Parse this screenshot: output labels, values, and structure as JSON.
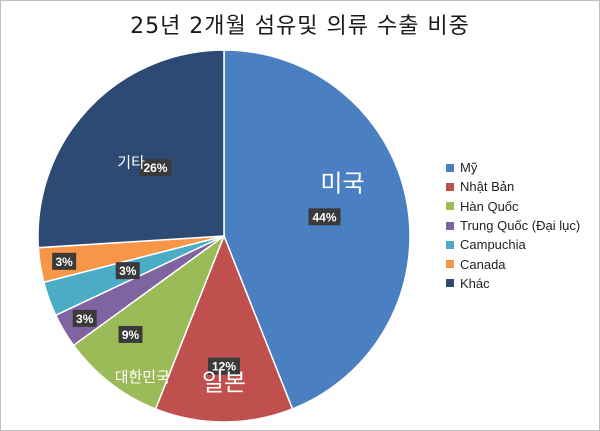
{
  "chart_data": {
    "type": "pie",
    "title": "25년 2개월 섬유및 의류 수출 비중",
    "slices": [
      {
        "name": "Mỹ",
        "value": 44,
        "label": "44%",
        "color": "#4a7fc1",
        "callout": "미국"
      },
      {
        "name": "Nhật Bản",
        "value": 12,
        "label": "12%",
        "color": "#c0504d",
        "callout": "일본"
      },
      {
        "name": "Hàn Quốc",
        "value": 9,
        "label": "9%",
        "color": "#9bbb59",
        "callout": "대한민국"
      },
      {
        "name": "Trung Quốc (Đại lục)",
        "value": 3,
        "label": "3%",
        "color": "#8064a2",
        "callout": ""
      },
      {
        "name": "Campuchia",
        "value": 3,
        "label": "3%",
        "color": "#4bacc6",
        "callout": ""
      },
      {
        "name": "Canada",
        "value": 3,
        "label": "3%",
        "color": "#f79646",
        "callout": ""
      },
      {
        "name": "Khác",
        "value": 26,
        "label": "26%",
        "color": "#2c4a74",
        "callout": "기타"
      }
    ],
    "legend_position": "right"
  }
}
